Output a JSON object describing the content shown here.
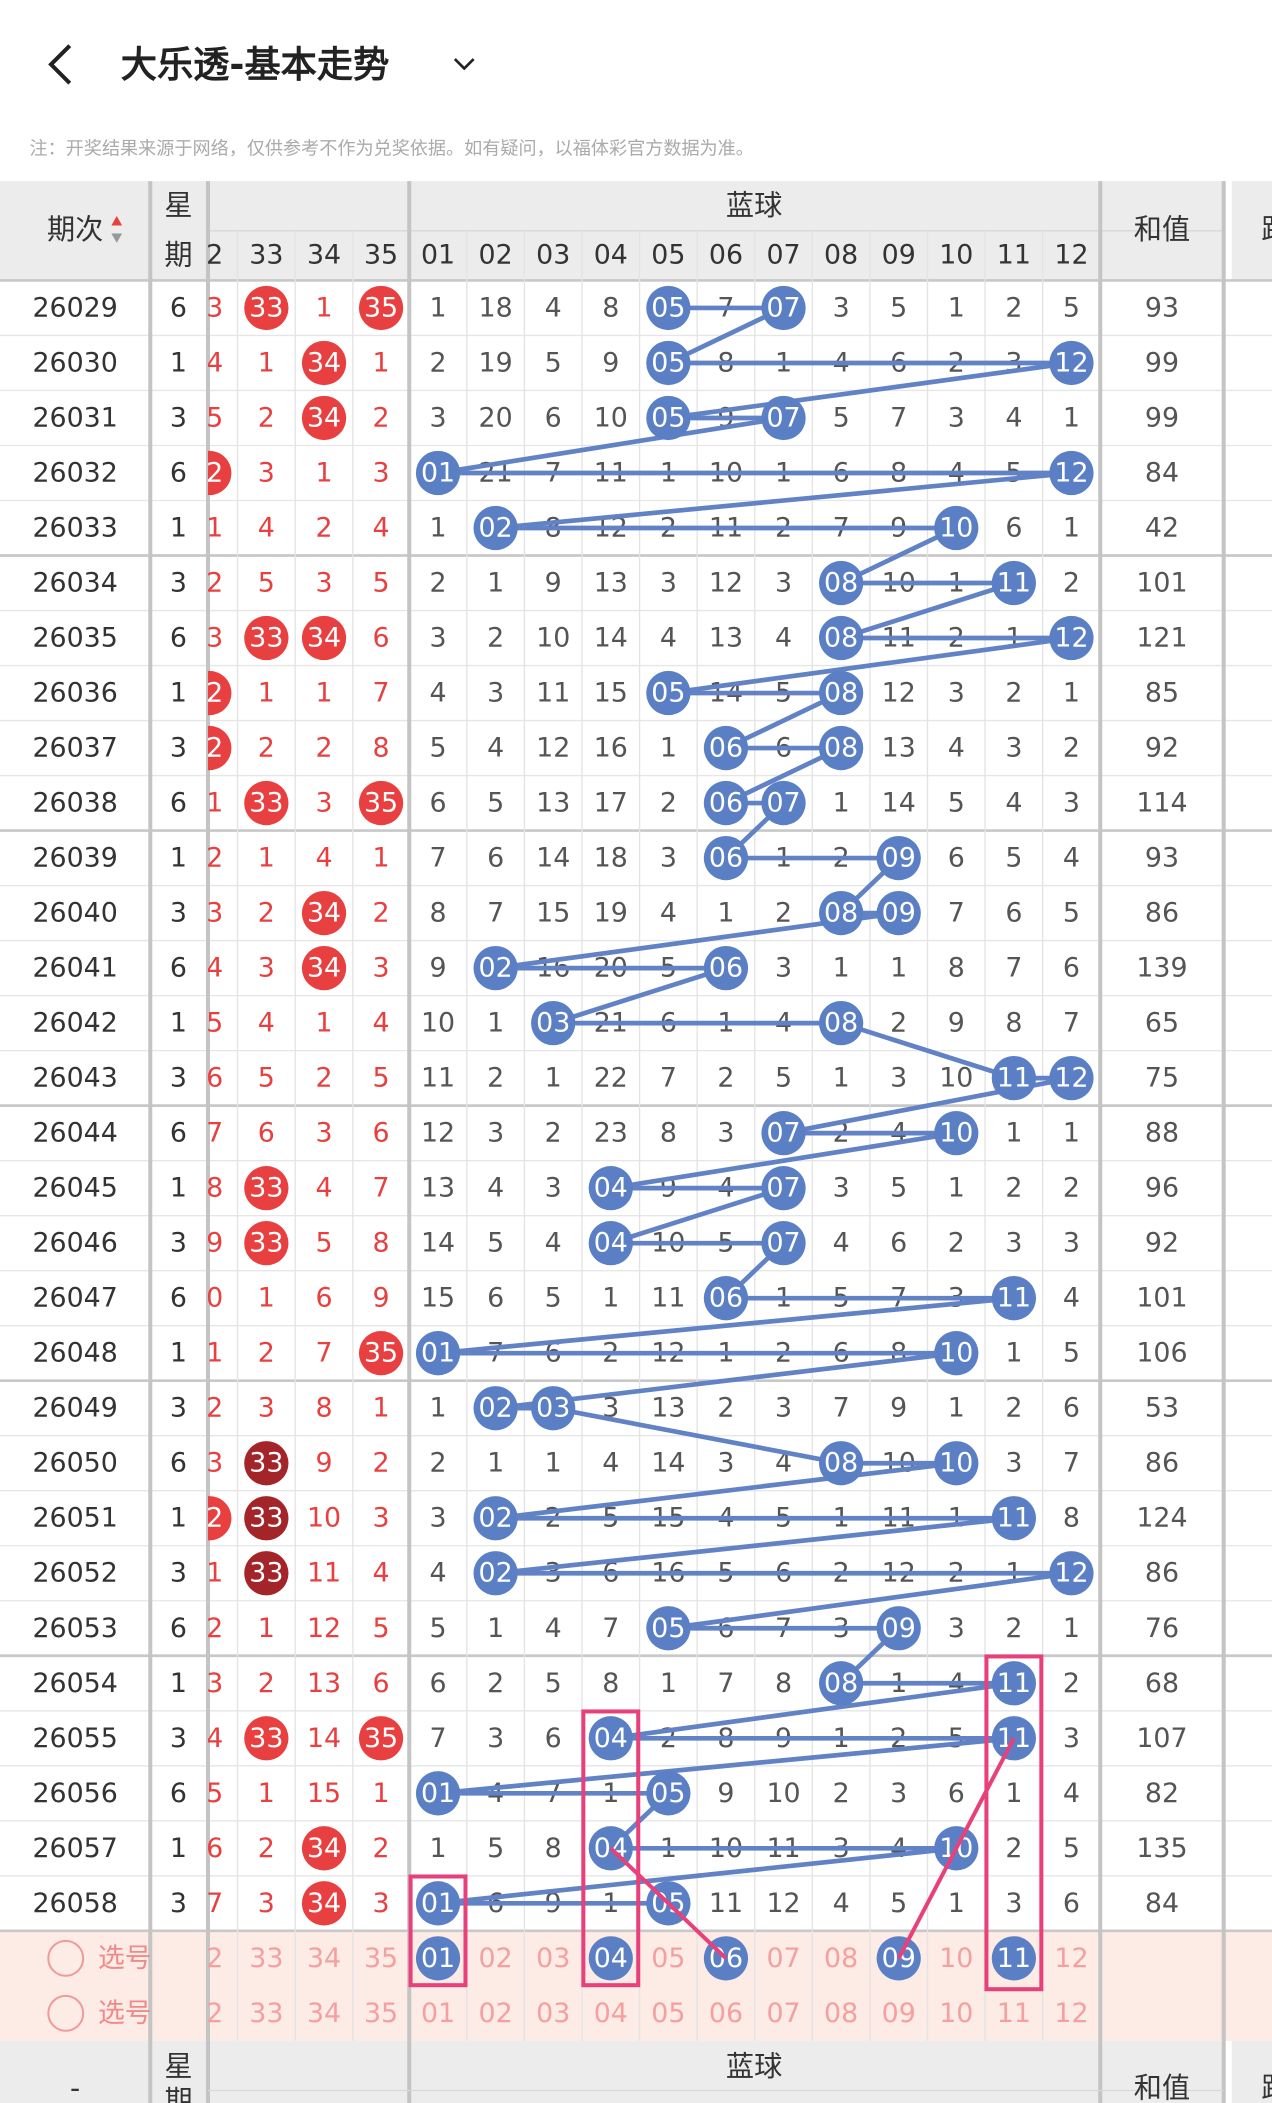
{
  "header": {
    "title": "大乐透-基本走势",
    "notice": "注：开奖结果来源于网络，仅供参考不作为兑奖依据。如有疑问，以福体彩官方数据为准。"
  },
  "table": {
    "columns": {
      "period": "期次",
      "week": [
        "星",
        "期"
      ],
      "blue_group": "蓝球",
      "red": [
        "2",
        "33",
        "34",
        "35"
      ],
      "blue": [
        "01",
        "02",
        "03",
        "04",
        "05",
        "06",
        "07",
        "08",
        "09",
        "10",
        "11",
        "12"
      ],
      "sum": "和值",
      "road": "路"
    },
    "rows": [
      {
        "period": 26029,
        "week": 6,
        "red": [
          "3",
          {
            "ball": "33"
          },
          1,
          {
            "ball": "35"
          }
        ],
        "blue": [
          1,
          18,
          4,
          8,
          {
            "ball": "05"
          },
          7,
          {
            "ball": "07"
          },
          3,
          5,
          1,
          2,
          5
        ],
        "sum": 93
      },
      {
        "period": 26030,
        "week": 1,
        "red": [
          "4",
          1,
          {
            "ball": "34"
          },
          1
        ],
        "blue": [
          2,
          19,
          5,
          9,
          {
            "ball": "05"
          },
          8,
          1,
          4,
          6,
          2,
          3,
          {
            "ball": "12"
          }
        ],
        "sum": 99
      },
      {
        "period": 26031,
        "week": 3,
        "red": [
          "5",
          2,
          {
            "ball": "34"
          },
          2
        ],
        "blue": [
          3,
          20,
          6,
          10,
          {
            "ball": "05"
          },
          9,
          {
            "ball": "07"
          },
          5,
          7,
          3,
          4,
          1
        ],
        "sum": 99
      },
      {
        "period": 26032,
        "week": 6,
        "red": [
          {
            "ball": "2"
          },
          3,
          1,
          3
        ],
        "blue": [
          {
            "ball": "01"
          },
          21,
          7,
          11,
          1,
          10,
          1,
          6,
          8,
          4,
          5,
          {
            "ball": "12"
          }
        ],
        "sum": 84
      },
      {
        "period": 26033,
        "week": 1,
        "red": [
          "1",
          4,
          2,
          4
        ],
        "blue": [
          1,
          {
            "ball": "02"
          },
          8,
          12,
          2,
          11,
          2,
          7,
          9,
          {
            "ball": "10"
          },
          6,
          1
        ],
        "sum": 42
      },
      {
        "period": 26034,
        "week": 3,
        "red": [
          "2",
          5,
          3,
          5
        ],
        "blue": [
          2,
          1,
          9,
          13,
          3,
          12,
          3,
          {
            "ball": "08"
          },
          10,
          1,
          {
            "ball": "11"
          },
          2
        ],
        "sum": 101
      },
      {
        "period": 26035,
        "week": 6,
        "red": [
          "3",
          {
            "ball": "33"
          },
          {
            "ball": "34"
          },
          6
        ],
        "blue": [
          3,
          2,
          10,
          14,
          4,
          13,
          4,
          {
            "ball": "08"
          },
          11,
          2,
          1,
          {
            "ball": "12"
          }
        ],
        "sum": 121
      },
      {
        "period": 26036,
        "week": 1,
        "red": [
          {
            "ball": "2"
          },
          1,
          1,
          7
        ],
        "blue": [
          4,
          3,
          11,
          15,
          {
            "ball": "05"
          },
          14,
          5,
          {
            "ball": "08"
          },
          12,
          3,
          2,
          1
        ],
        "sum": 85
      },
      {
        "period": 26037,
        "week": 3,
        "red": [
          {
            "ball": "2"
          },
          2,
          2,
          8
        ],
        "blue": [
          5,
          4,
          12,
          16,
          1,
          {
            "ball": "06"
          },
          6,
          {
            "ball": "08"
          },
          13,
          4,
          3,
          2
        ],
        "sum": 92
      },
      {
        "period": 26038,
        "week": 6,
        "red": [
          "1",
          {
            "ball": "33"
          },
          3,
          {
            "ball": "35"
          }
        ],
        "blue": [
          6,
          5,
          13,
          17,
          2,
          {
            "ball": "06"
          },
          {
            "ball": "07"
          },
          1,
          14,
          5,
          4,
          3
        ],
        "sum": 114
      },
      {
        "period": 26039,
        "week": 1,
        "red": [
          "2",
          1,
          4,
          1
        ],
        "blue": [
          7,
          6,
          14,
          18,
          3,
          {
            "ball": "06"
          },
          1,
          2,
          {
            "ball": "09"
          },
          6,
          5,
          4
        ],
        "sum": 93
      },
      {
        "period": 26040,
        "week": 3,
        "red": [
          "3",
          2,
          {
            "ball": "34"
          },
          2
        ],
        "blue": [
          8,
          7,
          15,
          19,
          4,
          1,
          2,
          {
            "ball": "08"
          },
          {
            "ball": "09"
          },
          7,
          6,
          5
        ],
        "sum": 86
      },
      {
        "period": 26041,
        "week": 6,
        "red": [
          "4",
          3,
          {
            "ball": "34"
          },
          3
        ],
        "blue": [
          9,
          {
            "ball": "02"
          },
          16,
          20,
          5,
          {
            "ball": "06"
          },
          3,
          1,
          1,
          8,
          7,
          6
        ],
        "sum": 139
      },
      {
        "period": 26042,
        "week": 1,
        "red": [
          "5",
          4,
          1,
          4
        ],
        "blue": [
          10,
          1,
          {
            "ball": "03"
          },
          21,
          6,
          1,
          4,
          {
            "ball": "08"
          },
          2,
          9,
          8,
          7
        ],
        "sum": 65
      },
      {
        "period": 26043,
        "week": 3,
        "red": [
          "6",
          5,
          2,
          5
        ],
        "blue": [
          11,
          2,
          1,
          22,
          7,
          2,
          5,
          1,
          3,
          10,
          {
            "ball": "11"
          },
          {
            "ball": "12"
          }
        ],
        "sum": 75
      },
      {
        "period": 26044,
        "week": 6,
        "red": [
          "7",
          6,
          3,
          6
        ],
        "blue": [
          12,
          3,
          2,
          23,
          8,
          3,
          {
            "ball": "07"
          },
          2,
          4,
          {
            "ball": "10"
          },
          1,
          1
        ],
        "sum": 88
      },
      {
        "period": 26045,
        "week": 1,
        "red": [
          "8",
          {
            "ball": "33"
          },
          4,
          7
        ],
        "blue": [
          13,
          4,
          3,
          {
            "ball": "04"
          },
          9,
          4,
          {
            "ball": "07"
          },
          3,
          5,
          1,
          2,
          2
        ],
        "sum": 96
      },
      {
        "period": 26046,
        "week": 3,
        "red": [
          "9",
          {
            "ball": "33"
          },
          5,
          8
        ],
        "blue": [
          14,
          5,
          4,
          {
            "ball": "04"
          },
          10,
          5,
          {
            "ball": "07"
          },
          4,
          6,
          2,
          3,
          3
        ],
        "sum": 92
      },
      {
        "period": 26047,
        "week": 6,
        "red": [
          "0",
          1,
          6,
          9
        ],
        "blue": [
          15,
          6,
          5,
          1,
          11,
          {
            "ball": "06"
          },
          1,
          5,
          7,
          3,
          {
            "ball": "11"
          },
          4
        ],
        "sum": 101
      },
      {
        "period": 26048,
        "week": 1,
        "red": [
          "1",
          2,
          7,
          {
            "ball": "35"
          }
        ],
        "blue": [
          {
            "ball": "01"
          },
          7,
          6,
          2,
          12,
          1,
          2,
          6,
          8,
          {
            "ball": "10"
          },
          1,
          5
        ],
        "sum": 106
      },
      {
        "period": 26049,
        "week": 3,
        "red": [
          "2",
          3,
          8,
          1
        ],
        "blue": [
          1,
          {
            "ball": "02"
          },
          {
            "ball": "03"
          },
          3,
          13,
          2,
          3,
          7,
          9,
          1,
          2,
          6
        ],
        "sum": 53
      },
      {
        "period": 26050,
        "week": 6,
        "red": [
          "3",
          {
            "ball": "33",
            "dark": true
          },
          9,
          2
        ],
        "blue": [
          2,
          1,
          1,
          4,
          14,
          3,
          4,
          {
            "ball": "08"
          },
          10,
          {
            "ball": "10"
          },
          3,
          7
        ],
        "sum": 86
      },
      {
        "period": 26051,
        "week": 1,
        "red": [
          {
            "ball": "2"
          },
          {
            "ball": "33",
            "dark": true
          },
          10,
          3
        ],
        "blue": [
          3,
          {
            "ball": "02"
          },
          2,
          5,
          15,
          4,
          5,
          1,
          11,
          1,
          {
            "ball": "11"
          },
          8
        ],
        "sum": 124
      },
      {
        "period": 26052,
        "week": 3,
        "red": [
          "1",
          {
            "ball": "33",
            "dark": true
          },
          11,
          4
        ],
        "blue": [
          4,
          {
            "ball": "02"
          },
          3,
          6,
          16,
          5,
          6,
          2,
          12,
          2,
          1,
          {
            "ball": "12"
          }
        ],
        "sum": 86
      },
      {
        "period": 26053,
        "week": 6,
        "red": [
          "2",
          1,
          12,
          5
        ],
        "blue": [
          5,
          1,
          4,
          7,
          {
            "ball": "05"
          },
          6,
          7,
          3,
          {
            "ball": "09"
          },
          3,
          2,
          1
        ],
        "sum": 76
      },
      {
        "period": 26054,
        "week": 1,
        "red": [
          "3",
          2,
          13,
          6
        ],
        "blue": [
          6,
          2,
          5,
          8,
          1,
          7,
          8,
          {
            "ball": "08"
          },
          1,
          4,
          {
            "ball": "11"
          },
          2
        ],
        "sum": 68
      },
      {
        "period": 26055,
        "week": 3,
        "red": [
          "4",
          {
            "ball": "33"
          },
          14,
          {
            "ball": "35"
          }
        ],
        "blue": [
          7,
          3,
          6,
          {
            "ball": "04"
          },
          2,
          8,
          9,
          1,
          2,
          5,
          {
            "ball": "11"
          },
          3
        ],
        "sum": 107
      },
      {
        "period": 26056,
        "week": 6,
        "red": [
          "5",
          1,
          15,
          1
        ],
        "blue": [
          {
            "ball": "01"
          },
          4,
          7,
          1,
          {
            "ball": "05"
          },
          9,
          10,
          2,
          3,
          6,
          1,
          4
        ],
        "sum": 82
      },
      {
        "period": 26057,
        "week": 1,
        "red": [
          "6",
          2,
          {
            "ball": "34"
          },
          2
        ],
        "blue": [
          1,
          5,
          8,
          {
            "ball": "04"
          },
          1,
          10,
          11,
          3,
          4,
          {
            "ball": "10"
          },
          2,
          5
        ],
        "sum": 135
      },
      {
        "period": 26058,
        "week": 3,
        "red": [
          "7",
          3,
          {
            "ball": "34"
          },
          3
        ],
        "blue": [
          {
            "ball": "01"
          },
          6,
          9,
          1,
          {
            "ball": "05"
          },
          11,
          12,
          4,
          5,
          1,
          3,
          6
        ],
        "sum": 84
      }
    ],
    "select_rows": [
      {
        "label": "选号",
        "red": [
          "2",
          "33",
          "34",
          "35"
        ],
        "blue": [
          {
            "ball": "01"
          },
          "02",
          "03",
          {
            "ball": "04"
          },
          "05",
          {
            "ball": "06"
          },
          "07",
          "08",
          {
            "ball": "09"
          },
          "10",
          {
            "ball": "11"
          },
          "12"
        ]
      },
      {
        "label": "选号",
        "red": [
          "2",
          "33",
          "34",
          "35"
        ],
        "blue": [
          "01",
          "02",
          "03",
          "04",
          "05",
          "06",
          "07",
          "08",
          "09",
          "10",
          "11",
          "12"
        ]
      }
    ]
  },
  "footer_header": {
    "period": "-",
    "week": [
      "星",
      "期"
    ],
    "blue_group": "蓝球",
    "sum": "和值",
    "road": "路"
  }
}
